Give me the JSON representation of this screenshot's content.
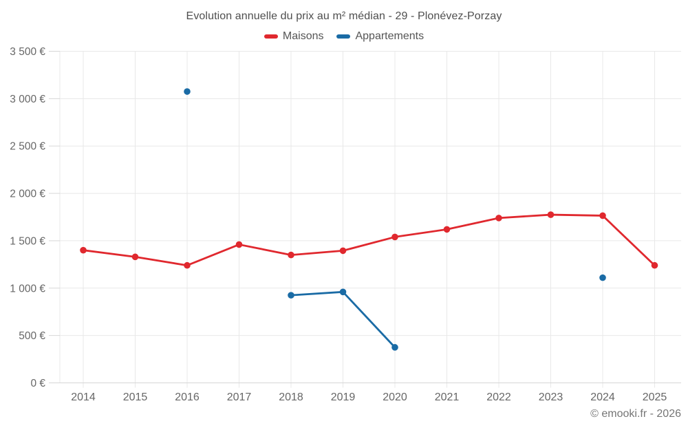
{
  "header": {
    "title": "Evolution annuelle du prix au m² médian - 29 - Plonévez-Porzay"
  },
  "legend": [
    {
      "label": "Maisons",
      "color": "#e0282e"
    },
    {
      "label": "Appartements",
      "color": "#1a6ba5"
    }
  ],
  "footer": {
    "credit": "© emooki.fr - 2026"
  },
  "chart_data": {
    "type": "line",
    "title": "Evolution annuelle du prix au m² médian - 29 - Plonévez-Porzay",
    "categories": [
      "2014",
      "2015",
      "2016",
      "2017",
      "2018",
      "2019",
      "2020",
      "2021",
      "2022",
      "2023",
      "2024",
      "2025"
    ],
    "series": [
      {
        "name": "Maisons",
        "color": "#e0282e",
        "values": [
          1400,
          1330,
          1240,
          1460,
          1350,
          1395,
          1540,
          1620,
          1740,
          1775,
          1765,
          1240
        ]
      },
      {
        "name": "Appartements",
        "color": "#1a6ba5",
        "values": [
          null,
          null,
          3075,
          null,
          925,
          960,
          375,
          null,
          null,
          null,
          1110,
          null
        ]
      }
    ],
    "xlabel": "",
    "ylabel": "",
    "ylim": [
      0,
      3500
    ],
    "y_ticks": [
      {
        "value": 0,
        "label": "0 €"
      },
      {
        "value": 500,
        "label": "500 €"
      },
      {
        "value": 1000,
        "label": "1 000 €"
      },
      {
        "value": 1500,
        "label": "1 500 €"
      },
      {
        "value": 2000,
        "label": "2 000 €"
      },
      {
        "value": 2500,
        "label": "2 500 €"
      },
      {
        "value": 3000,
        "label": "3 000 €"
      },
      {
        "value": 3500,
        "label": "3 500 €"
      }
    ],
    "grid": true,
    "legend_position": "top",
    "currency": "€"
  }
}
